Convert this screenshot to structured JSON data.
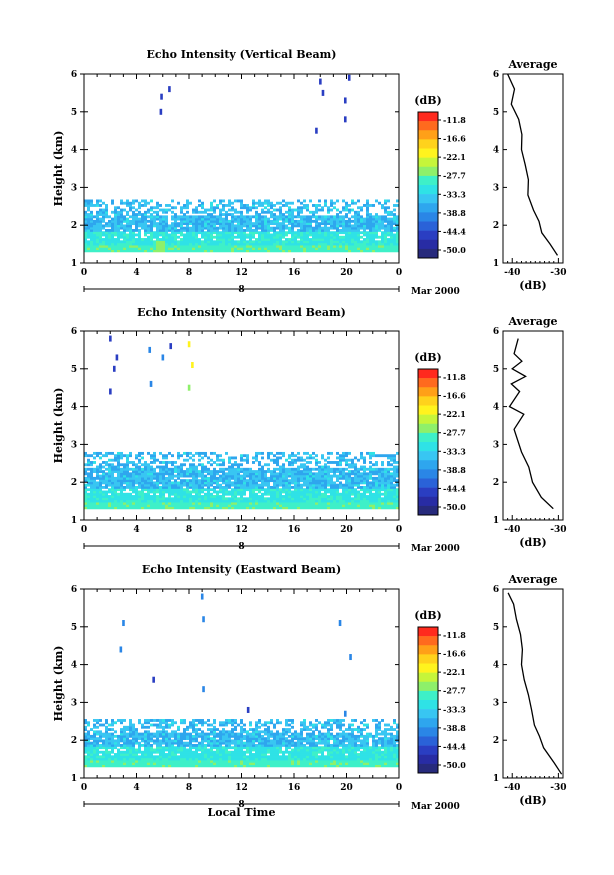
{
  "colorbar_unit": "(dB)",
  "colorbar_ticks": [
    "-11.8",
    "-16.6",
    "-22.1",
    "-27.7",
    "-33.3",
    "-38.8",
    "-44.4",
    "-50.0"
  ],
  "colorbar_colors": [
    "#ff2a1e",
    "#ff6a1e",
    "#ffa018",
    "#ffd21c",
    "#fff31e",
    "#c6f53a",
    "#8ef06a",
    "#3ef0c8",
    "#2fe2e6",
    "#38c6f2",
    "#2ea6ee",
    "#2a86e6",
    "#2a62d8",
    "#2a3ec2",
    "#282ca4",
    "#272a7c"
  ],
  "xlabel": "Local Time",
  "date_label": "Mar 2000",
  "day_label": "8",
  "x_tick_labels": [
    "0",
    "4",
    "8",
    "12",
    "16",
    "20",
    "0"
  ],
  "height_axis": {
    "label": "Height (km)",
    "ticks": [
      "1",
      "2",
      "3",
      "4",
      "5",
      "6"
    ],
    "ylim": [
      1,
      6
    ]
  },
  "avg_axis": {
    "title": "Average",
    "label": "(dB)",
    "ticks": [
      "-40",
      "-30"
    ],
    "xlim": [
      -42,
      -29
    ]
  },
  "chart_data": [
    {
      "type": "heatmap",
      "title": "Echo Intensity (Vertical Beam)",
      "xlim": [
        0,
        24
      ],
      "ylim": [
        1,
        6
      ],
      "layer_top_km": 2.5,
      "sparse_echoes": [
        {
          "t": 5.9,
          "h": 5.4,
          "db": -44
        },
        {
          "t": 5.85,
          "h": 5.0,
          "db": -44
        },
        {
          "t": 6.5,
          "h": 5.6,
          "db": -44
        },
        {
          "t": 18.0,
          "h": 5.8,
          "db": -44
        },
        {
          "t": 18.2,
          "h": 5.5,
          "db": -44
        },
        {
          "t": 17.7,
          "h": 4.5,
          "db": -44
        },
        {
          "t": 20.2,
          "h": 5.9,
          "db": -44
        },
        {
          "t": 19.9,
          "h": 5.3,
          "db": -44
        },
        {
          "t": 19.9,
          "h": 4.8,
          "db": -44
        }
      ],
      "average_profile": [
        {
          "h": 6.0,
          "db": -41.0
        },
        {
          "h": 5.6,
          "db": -39.5
        },
        {
          "h": 5.2,
          "db": -40.2
        },
        {
          "h": 4.8,
          "db": -38.6
        },
        {
          "h": 4.4,
          "db": -37.9
        },
        {
          "h": 4.0,
          "db": -38.0
        },
        {
          "h": 3.6,
          "db": -37.2
        },
        {
          "h": 3.2,
          "db": -36.5
        },
        {
          "h": 2.8,
          "db": -36.6
        },
        {
          "h": 2.4,
          "db": -35.4
        },
        {
          "h": 2.1,
          "db": -34.2
        },
        {
          "h": 1.8,
          "db": -33.6
        },
        {
          "h": 1.5,
          "db": -31.8
        },
        {
          "h": 1.2,
          "db": -30.2
        }
      ]
    },
    {
      "type": "heatmap",
      "title": "Echo Intensity (Northward Beam)",
      "xlim": [
        0,
        24
      ],
      "ylim": [
        1,
        6
      ],
      "layer_top_km": 2.6,
      "sparse_echoes": [
        {
          "t": 2.0,
          "h": 5.8,
          "db": -44
        },
        {
          "t": 2.5,
          "h": 5.3,
          "db": -44
        },
        {
          "t": 2.3,
          "h": 5.0,
          "db": -44
        },
        {
          "t": 2.0,
          "h": 4.4,
          "db": -44
        },
        {
          "t": 5.0,
          "h": 5.5,
          "db": -40
        },
        {
          "t": 5.1,
          "h": 4.6,
          "db": -40
        },
        {
          "t": 6.0,
          "h": 5.3,
          "db": -40
        },
        {
          "t": 6.6,
          "h": 5.6,
          "db": -44
        },
        {
          "t": 8.0,
          "h": 5.65,
          "db": -21
        },
        {
          "t": 8.25,
          "h": 5.1,
          "db": -21
        },
        {
          "t": 8.0,
          "h": 4.5,
          "db": -27
        }
      ],
      "average_profile": [
        {
          "h": 5.8,
          "db": -38.7
        },
        {
          "h": 5.4,
          "db": -39.6
        },
        {
          "h": 5.2,
          "db": -37.9
        },
        {
          "h": 5.0,
          "db": -40.0
        },
        {
          "h": 4.8,
          "db": -37.1
        },
        {
          "h": 4.6,
          "db": -40.2
        },
        {
          "h": 4.4,
          "db": -38.4
        },
        {
          "h": 4.0,
          "db": -40.6
        },
        {
          "h": 3.8,
          "db": -37.5
        },
        {
          "h": 3.4,
          "db": -39.6
        },
        {
          "h": 2.8,
          "db": -38.0
        },
        {
          "h": 2.4,
          "db": -36.4
        },
        {
          "h": 2.0,
          "db": -35.6
        },
        {
          "h": 1.6,
          "db": -33.7
        },
        {
          "h": 1.3,
          "db": -31.1
        }
      ]
    },
    {
      "type": "heatmap",
      "title": "Echo Intensity (Eastward Beam)",
      "xlim": [
        0,
        24
      ],
      "ylim": [
        1,
        6
      ],
      "layer_top_km": 2.4,
      "sparse_echoes": [
        {
          "t": 3.0,
          "h": 5.1,
          "db": -40
        },
        {
          "t": 2.8,
          "h": 4.4,
          "db": -40
        },
        {
          "t": 5.3,
          "h": 3.6,
          "db": -44
        },
        {
          "t": 9.0,
          "h": 5.8,
          "db": -40
        },
        {
          "t": 9.1,
          "h": 5.2,
          "db": -40
        },
        {
          "t": 9.1,
          "h": 3.35,
          "db": -40
        },
        {
          "t": 12.5,
          "h": 2.8,
          "db": -44
        },
        {
          "t": 19.5,
          "h": 5.1,
          "db": -40
        },
        {
          "t": 20.3,
          "h": 4.2,
          "db": -40
        },
        {
          "t": 19.9,
          "h": 2.7,
          "db": -40
        }
      ],
      "average_profile": [
        {
          "h": 5.9,
          "db": -40.9
        },
        {
          "h": 5.6,
          "db": -39.7
        },
        {
          "h": 5.2,
          "db": -39.1
        },
        {
          "h": 4.8,
          "db": -38.2
        },
        {
          "h": 4.4,
          "db": -37.8
        },
        {
          "h": 4.0,
          "db": -38.0
        },
        {
          "h": 3.6,
          "db": -37.4
        },
        {
          "h": 3.2,
          "db": -36.5
        },
        {
          "h": 2.8,
          "db": -35.8
        },
        {
          "h": 2.4,
          "db": -35.2
        },
        {
          "h": 2.1,
          "db": -34.1
        },
        {
          "h": 1.8,
          "db": -33.2
        },
        {
          "h": 1.4,
          "db": -30.9
        },
        {
          "h": 1.1,
          "db": -29.3
        }
      ]
    }
  ]
}
